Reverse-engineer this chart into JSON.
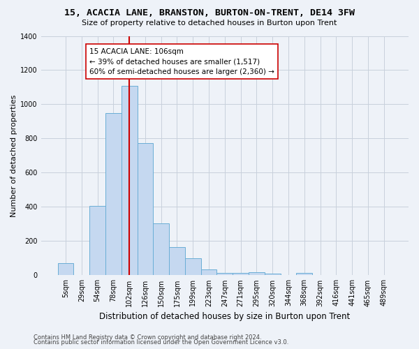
{
  "title1": "15, ACACIA LANE, BRANSTON, BURTON-ON-TRENT, DE14 3FW",
  "title2": "Size of property relative to detached houses in Burton upon Trent",
  "xlabel": "Distribution of detached houses by size in Burton upon Trent",
  "ylabel": "Number of detached properties",
  "footnote1": "Contains HM Land Registry data © Crown copyright and database right 2024.",
  "footnote2": "Contains public sector information licensed under the Open Government Licence v3.0.",
  "bar_labels": [
    "5sqm",
    "29sqm",
    "54sqm",
    "78sqm",
    "102sqm",
    "126sqm",
    "150sqm",
    "175sqm",
    "199sqm",
    "223sqm",
    "247sqm",
    "271sqm",
    "295sqm",
    "320sqm",
    "344sqm",
    "368sqm",
    "392sqm",
    "416sqm",
    "441sqm",
    "465sqm",
    "489sqm"
  ],
  "bar_values": [
    70,
    0,
    405,
    950,
    1110,
    775,
    305,
    165,
    100,
    35,
    15,
    15,
    18,
    8,
    0,
    13,
    0,
    0,
    0,
    0,
    0
  ],
  "bar_color": "#c5d8f0",
  "bar_edge_color": "#6aaed6",
  "grid_color": "#c8d0dc",
  "vline_color": "#cc0000",
  "annotation_text": "15 ACACIA LANE: 106sqm\n← 39% of detached houses are smaller (1,517)\n60% of semi-detached houses are larger (2,360) →",
  "annotation_box_color": "#ffffff",
  "annotation_box_edge": "#cc0000",
  "ylim": [
    0,
    1400
  ],
  "yticks": [
    0,
    200,
    400,
    600,
    800,
    1000,
    1200,
    1400
  ],
  "background_color": "#eef2f8",
  "title_fontsize": 9.5,
  "subtitle_fontsize": 8.0,
  "ylabel_fontsize": 8.0,
  "xlabel_fontsize": 8.5,
  "tick_fontsize": 7.0,
  "annot_fontsize": 7.5,
  "footnote_fontsize": 6.0
}
